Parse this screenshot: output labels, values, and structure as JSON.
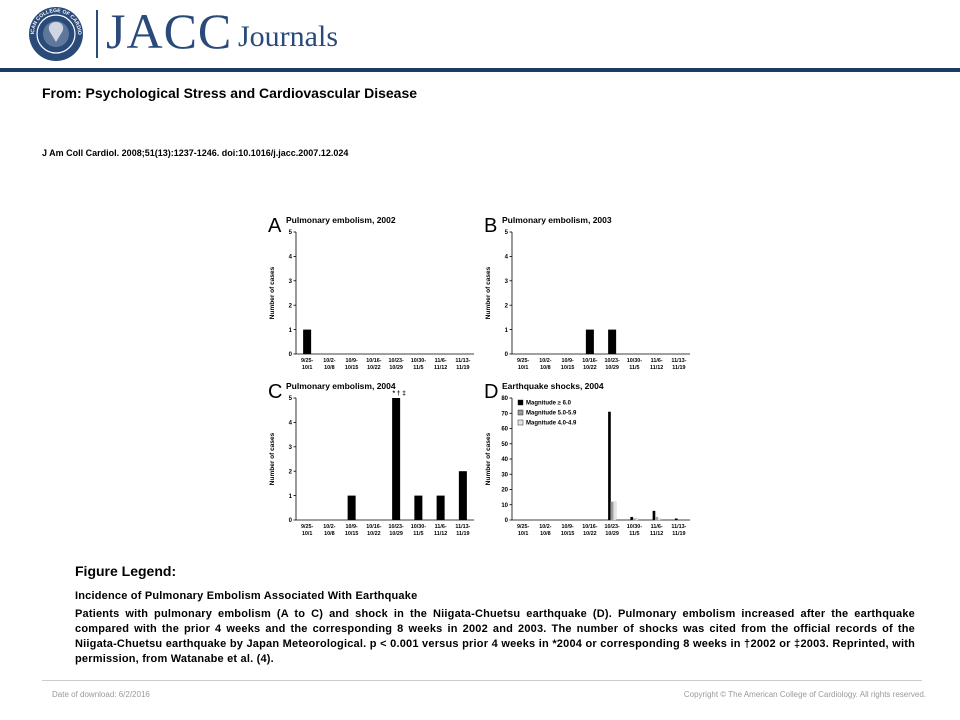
{
  "header": {
    "logo_text": "JACC",
    "logo_sub": "Journals",
    "seal_text": "AMERICAN COLLEGE OF CARDIOLOGY",
    "brand_color": "#2a4a7a",
    "bar_color": "#1b3a66"
  },
  "article": {
    "from": "From: Psychological Stress and Cardiovascular Disease",
    "citation": "J Am Coll Cardiol. 2008;51(13):1237-1246. doi:10.1016/j.jacc.2007.12.024"
  },
  "chart_data": [
    {
      "panel": "A",
      "type": "bar",
      "title": "Pulmonary embolism, 2002",
      "ylabel": "Number of cases",
      "ylim": [
        0,
        5
      ],
      "yticks": [
        "0",
        "1",
        "2",
        "3",
        "4",
        "5"
      ],
      "categories": [
        [
          "9/25-",
          "10/1"
        ],
        [
          "10/2-",
          "10/8"
        ],
        [
          "10/9-",
          "10/15"
        ],
        [
          "10/16-",
          "10/22"
        ],
        [
          "10/23-",
          "10/29"
        ],
        [
          "10/30-",
          "11/5"
        ],
        [
          "11/6-",
          "11/12"
        ],
        [
          "11/13-",
          "11/19"
        ]
      ],
      "values": [
        1,
        0,
        0,
        0,
        0,
        0,
        0,
        0
      ]
    },
    {
      "panel": "B",
      "type": "bar",
      "title": "Pulmonary embolism, 2003",
      "ylabel": "Number of cases",
      "ylim": [
        0,
        5
      ],
      "yticks": [
        "0",
        "1",
        "2",
        "3",
        "4",
        "5"
      ],
      "categories": [
        [
          "9/25-",
          "10/1"
        ],
        [
          "10/2-",
          "10/8"
        ],
        [
          "10/9-",
          "10/15"
        ],
        [
          "10/16-",
          "10/22"
        ],
        [
          "10/23-",
          "10/29"
        ],
        [
          "10/30-",
          "11/5"
        ],
        [
          "11/6-",
          "11/12"
        ],
        [
          "11/13-",
          "11/19"
        ]
      ],
      "values": [
        0,
        0,
        0,
        1,
        1,
        0,
        0,
        0
      ]
    },
    {
      "panel": "C",
      "type": "bar",
      "title": "Pulmonary embolism, 2004",
      "ylabel": "Number of cases",
      "ylim": [
        0,
        5
      ],
      "yticks": [
        "0",
        "1",
        "2",
        "3",
        "4",
        "5"
      ],
      "categories": [
        [
          "9/25-",
          "10/1"
        ],
        [
          "10/2-",
          "10/8"
        ],
        [
          "10/9-",
          "10/15"
        ],
        [
          "10/16-",
          "10/22"
        ],
        [
          "10/23-",
          "10/29"
        ],
        [
          "10/30-",
          "11/5"
        ],
        [
          "11/6-",
          "11/12"
        ],
        [
          "11/13-",
          "11/19"
        ]
      ],
      "values": [
        0,
        0,
        1,
        0,
        5,
        1,
        1,
        2
      ],
      "annotation": "* † ‡",
      "annotation_index": 4
    },
    {
      "panel": "D",
      "type": "bar",
      "title": "Earthquake shocks, 2004",
      "ylabel": "Number of cases",
      "ylim": [
        0,
        80
      ],
      "yticks": [
        "0",
        "10",
        "20",
        "30",
        "40",
        "50",
        "60",
        "70",
        "80"
      ],
      "categories": [
        [
          "9/25-",
          "10/1"
        ],
        [
          "10/2-",
          "10/8"
        ],
        [
          "10/9-",
          "10/15"
        ],
        [
          "10/16-",
          "10/22"
        ],
        [
          "10/23-",
          "10/29"
        ],
        [
          "10/30-",
          "11/5"
        ],
        [
          "11/6-",
          "11/12"
        ],
        [
          "11/13-",
          "11/19"
        ]
      ],
      "legend_position": "top-left",
      "series": [
        {
          "name": "Magnitude ≥ 6.0",
          "color": "#000000",
          "values": [
            0,
            0,
            0,
            0,
            71,
            2,
            6,
            1
          ]
        },
        {
          "name": "Magnitude 5.0-5.9",
          "color": "#9a9a9a",
          "values": [
            0,
            0,
            0,
            0,
            12,
            1,
            2,
            0
          ]
        },
        {
          "name": "Magnitude 4.0-4.9",
          "color": "#e4e4e4",
          "values": [
            0,
            0,
            0,
            0,
            12,
            1,
            1,
            0
          ]
        }
      ]
    }
  ],
  "legend": {
    "title": "Figure Legend:",
    "heading": "Incidence of Pulmonary Embolism Associated With Earthquake",
    "body": "Patients with pulmonary embolism (A to C) and shock in the Niigata-Chuetsu earthquake (D). Pulmonary embolism increased after the earthquake compared with the prior 4 weeks and the corresponding 8 weeks in 2002 and 2003. The number of shocks was cited from the official records of the Niigata-Chuetsu earthquake by Japan Meteorological. p < 0.001 versus prior 4 weeks in *2004 or corresponding 8 weeks in †2002 or ‡2003. Reprinted, with permission, from Watanabe et al. (4)."
  },
  "footer": {
    "download": "Date of download:  6/2/2016",
    "copyright": "Copyright © The American College of Cardiology. All rights reserved."
  }
}
